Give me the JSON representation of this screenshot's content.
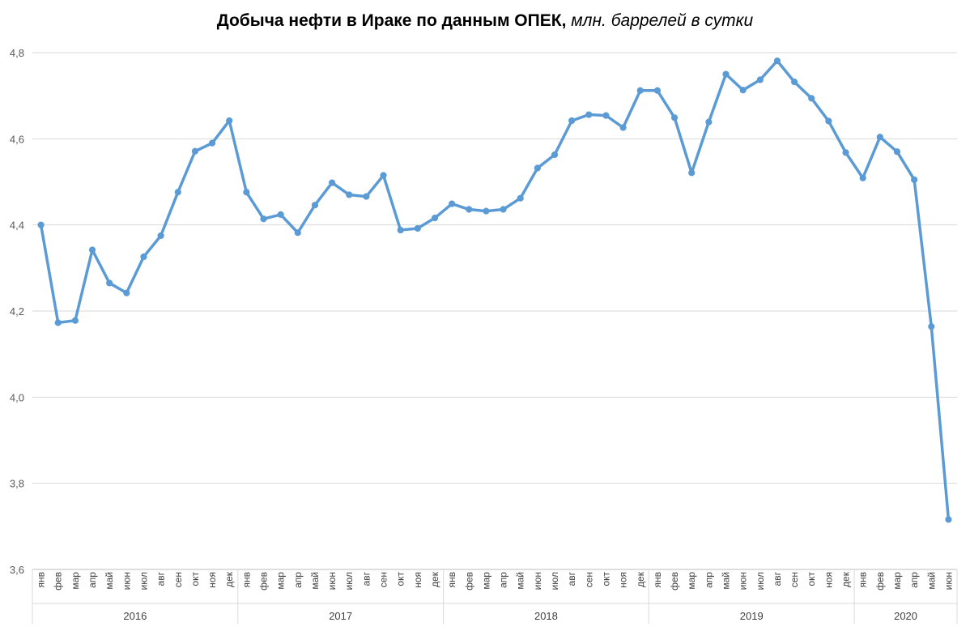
{
  "chart_data": {
    "type": "line",
    "title": "Добыча нефти в Ираке по данным ОПЕК",
    "subtitle": "млн. баррелей в сутки",
    "ylim": [
      3.6,
      4.8
    ],
    "yticks": [
      "3,6",
      "3,8",
      "4,0",
      "4,2",
      "4,4",
      "4,6",
      "4,8"
    ],
    "ytick_values": [
      3.6,
      3.8,
      4.0,
      4.2,
      4.4,
      4.6,
      4.8
    ],
    "grid": "horizontal",
    "legend": "none",
    "color": "#5B9BD5",
    "years": [
      {
        "label": "2016",
        "months": 12
      },
      {
        "label": "2017",
        "months": 12
      },
      {
        "label": "2018",
        "months": 12
      },
      {
        "label": "2019",
        "months": 12
      },
      {
        "label": "2020",
        "months": 6
      }
    ],
    "categories": [
      "янв",
      "фев",
      "мар",
      "апр",
      "май",
      "июн",
      "июл",
      "авг",
      "сен",
      "окт",
      "ноя",
      "дек",
      "янв",
      "фев",
      "мар",
      "апр",
      "май",
      "июн",
      "июл",
      "авг",
      "сен",
      "окт",
      "ноя",
      "дек",
      "янв",
      "фев",
      "мар",
      "апр",
      "май",
      "июн",
      "июл",
      "авг",
      "сен",
      "окт",
      "ноя",
      "дек",
      "янв",
      "фев",
      "мар",
      "апр",
      "май",
      "июн",
      "июл",
      "авг",
      "сен",
      "окт",
      "ноя",
      "дек",
      "янв",
      "фев",
      "мар",
      "апр",
      "май",
      "июн"
    ],
    "series": [
      {
        "values": [
          4.4,
          4.173,
          4.178,
          4.342,
          4.265,
          4.242,
          4.326,
          4.375,
          4.476,
          4.571,
          4.59,
          4.642,
          4.476,
          4.414,
          4.424,
          4.382,
          4.446,
          4.498,
          4.47,
          4.466,
          4.515,
          4.388,
          4.392,
          4.416,
          4.449,
          4.436,
          4.432,
          4.436,
          4.462,
          4.532,
          4.563,
          4.642,
          4.656,
          4.654,
          4.626,
          4.712,
          4.712,
          4.649,
          4.521,
          4.639,
          4.75,
          4.713,
          4.737,
          4.781,
          4.732,
          4.694,
          4.641,
          4.568,
          4.509,
          4.604,
          4.57,
          4.505,
          4.164,
          3.716
        ]
      }
    ]
  }
}
